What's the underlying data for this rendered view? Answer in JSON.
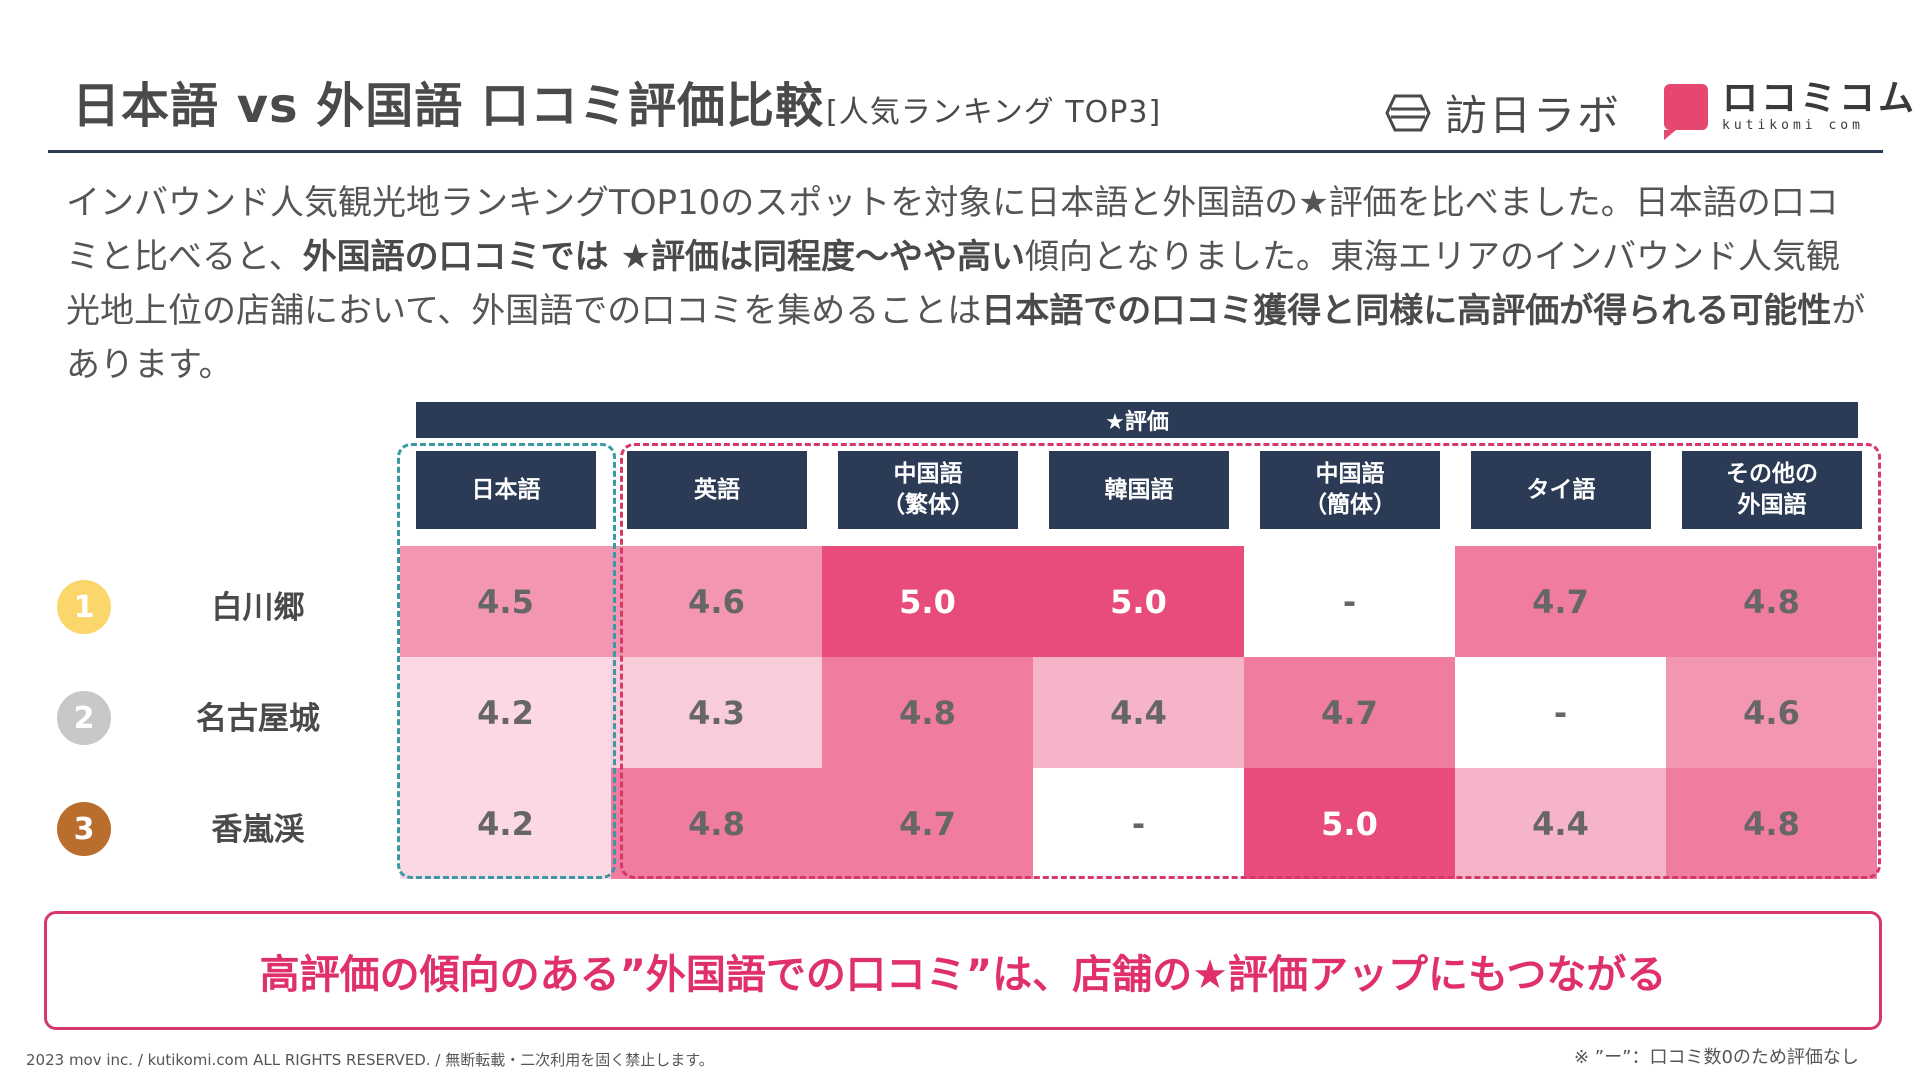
{
  "header": {
    "title": "日本語 vs 外国語 口コミ評価比較",
    "subtitle": "[人気ランキング TOP3]",
    "logo_left": "訪日ラボ",
    "logo_right_main": "ロコミコム",
    "logo_right_sub": "kutikomi com"
  },
  "intro": {
    "t1": "インバウンド人気観光地ランキングTOP10のスポットを対象に日本語と外国語の★評価を比べました。日本語の口コミと比べると、",
    "b1": "外国語の口コミでは ★評価は同程度〜やや高い",
    "t2": "傾向となりました。東海エリアのインバウンド人気観光地上位の店舗において、外国語での口コミを集めることは",
    "b2": "日本語での口コミ獲得と同様に高評価が得られる可能性",
    "t3": "があります。"
  },
  "table": {
    "banner": "★評価",
    "columns": [
      "日本語",
      "英語",
      "中国語\n（繁体）",
      "韓国語",
      "中国語\n（簡体）",
      "タイ語",
      "その他の\n外国語"
    ],
    "rows": [
      {
        "rank": "1",
        "rank_color": "#fbd66b",
        "name": "白川郷",
        "values": [
          "4.5",
          "4.6",
          "5.0",
          "5.0",
          "-",
          "4.7",
          "4.8"
        ],
        "colors": [
          "#f396b2",
          "#f396b2",
          "#e84c7d",
          "#e84c7d",
          "#ffffff",
          "#f07ca0",
          "#f07ca0"
        ],
        "text_colors": [
          "#666666",
          "#666666",
          "#ffffff",
          "#ffffff",
          "#666666",
          "#666666",
          "#666666"
        ]
      },
      {
        "rank": "2",
        "rank_color": "#c8c8c8",
        "name": "名古屋城",
        "values": [
          "4.2",
          "4.3",
          "4.8",
          "4.4",
          "4.7",
          "-",
          "4.6"
        ],
        "colors": [
          "#fbd8e3",
          "#f9ccd9",
          "#f07ca0",
          "#f6b4c8",
          "#f07ca0",
          "#ffffff",
          "#f396b2"
        ],
        "text_colors": [
          "#666666",
          "#666666",
          "#666666",
          "#666666",
          "#666666",
          "#666666",
          "#666666"
        ]
      },
      {
        "rank": "3",
        "rank_color": "#b96e2e",
        "name": "香嵐渓",
        "values": [
          "4.2",
          "4.8",
          "4.7",
          "-",
          "5.0",
          "4.4",
          "4.8"
        ],
        "colors": [
          "#fbd8e3",
          "#f07ca0",
          "#f07ca0",
          "#ffffff",
          "#e84c7d",
          "#f6b4c8",
          "#f07ca0"
        ],
        "text_colors": [
          "#666666",
          "#666666",
          "#666666",
          "#666666",
          "#ffffff",
          "#666666",
          "#666666"
        ]
      }
    ]
  },
  "conclusion": "高評価の傾向のある”外国語での口コミ”は、店舗の★評価アップにもつながる",
  "footer": {
    "left": "2023 mov inc. / kutikomi.com ALL RIGHTS RESERVED. / 無断転載・二次利用を固く禁止します。",
    "right": "※ ”ー”：口コミ数0のため評価なし"
  }
}
